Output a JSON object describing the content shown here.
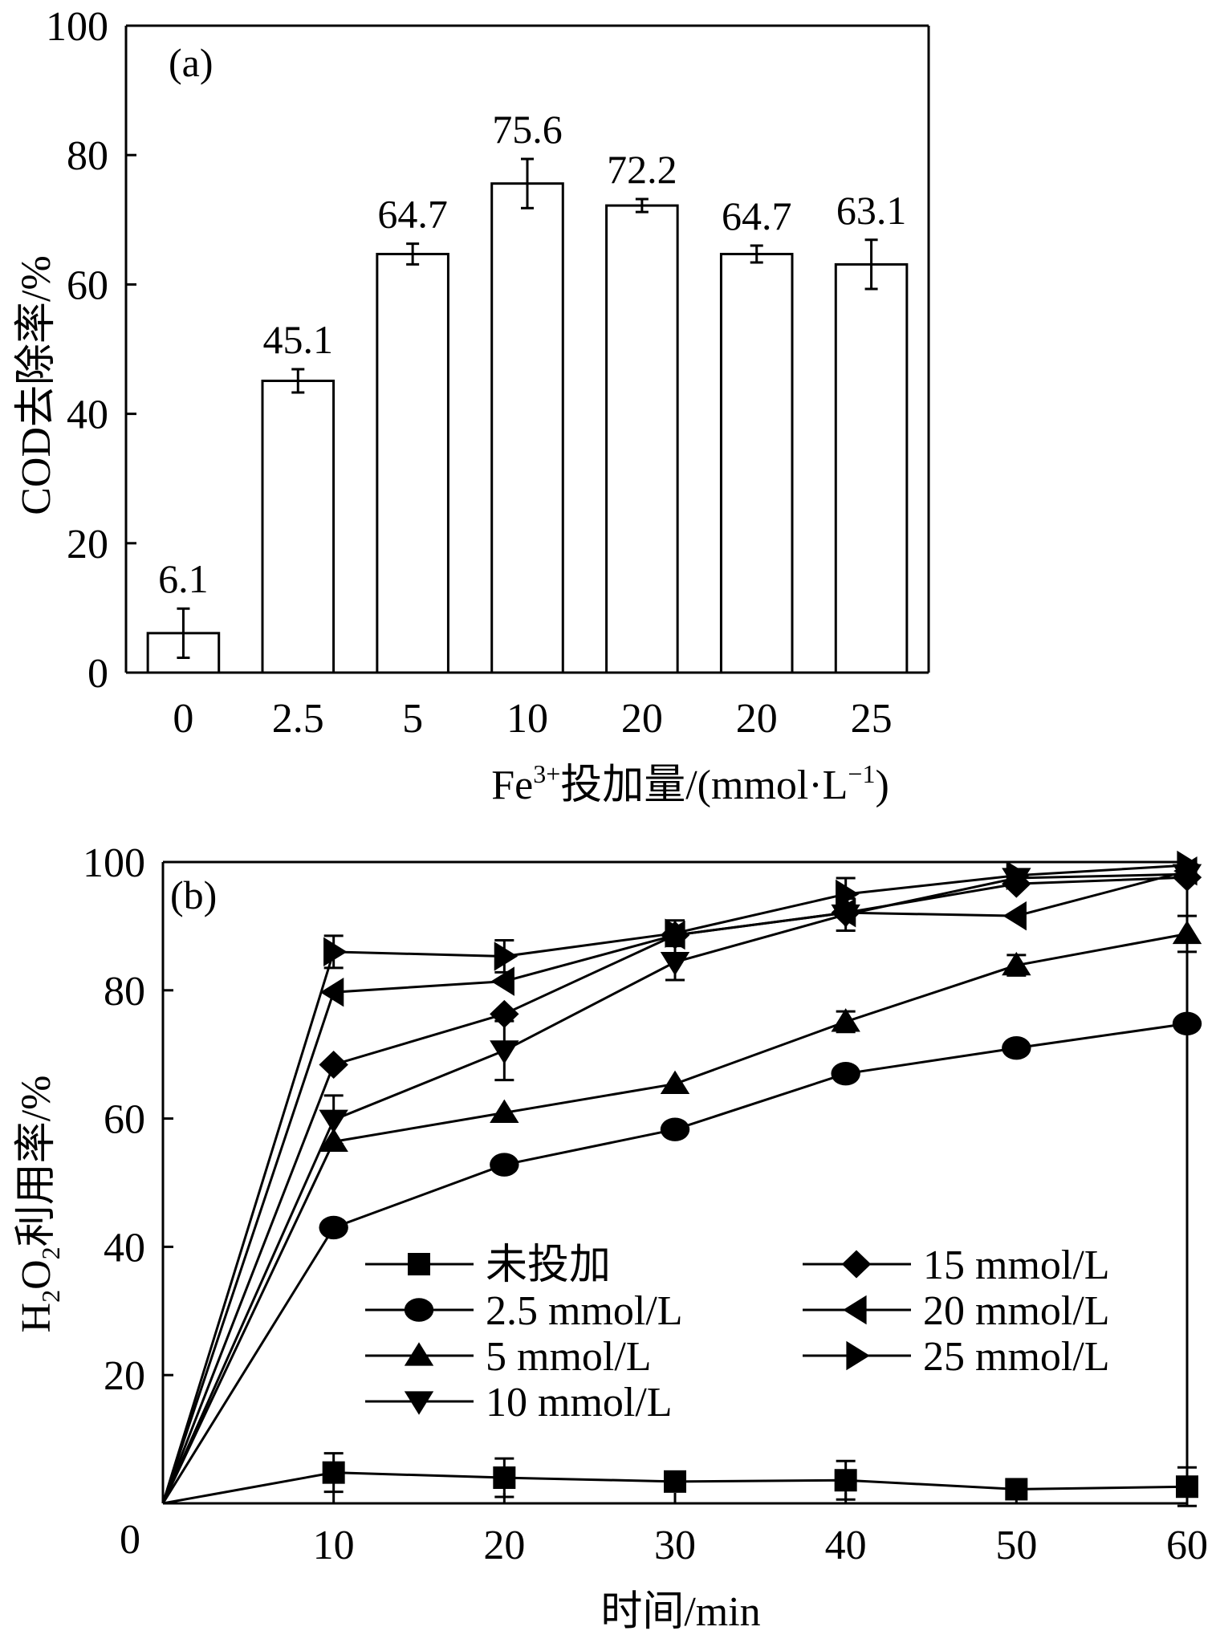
{
  "chart_data": [
    {
      "type": "bar",
      "panel_label": "(a)",
      "categories": [
        "0",
        "2.5",
        "5",
        "10",
        "20",
        "20",
        "25"
      ],
      "values": [
        6.1,
        45.1,
        64.7,
        75.6,
        72.2,
        64.7,
        63.1
      ],
      "value_labels": [
        "6.1",
        "45.1",
        "64.7",
        "75.6",
        "72.2",
        "64.7",
        "63.1"
      ],
      "errors": [
        3.8,
        1.8,
        1.6,
        3.8,
        1.0,
        1.3,
        3.8
      ],
      "xlabel": {
        "prefix": "Fe",
        "sup": "3+",
        "mid": "投加量/(mmol·L",
        "sup2": "−1",
        "suffix": ")"
      },
      "ylabel": "COD去除率/%",
      "ylim": [
        0,
        100
      ],
      "yticks": [
        0,
        20,
        40,
        60,
        80,
        100
      ],
      "ytick_labels": [
        "0",
        "20",
        "40",
        "60",
        "80",
        "100"
      ],
      "grid": false
    },
    {
      "type": "line",
      "panel_label": "(b)",
      "xlabel": "时间/min",
      "ylabel": {
        "part1": "H",
        "sub1": "2",
        "part2": "O",
        "sub2": "2",
        "part3": "利用率/%"
      },
      "xlim": [
        0,
        60
      ],
      "ylim": [
        0,
        100
      ],
      "xticks": [
        10,
        20,
        30,
        40,
        50,
        60
      ],
      "xtick_labels": [
        "10",
        "20",
        "30",
        "40",
        "50",
        "60"
      ],
      "yticks": [
        20,
        40,
        60,
        80,
        100
      ],
      "ytick_labels": [
        "20",
        "40",
        "60",
        "80",
        "100"
      ],
      "origin_label": "0",
      "legend_position": "lower-right",
      "grid": false,
      "x": [
        0,
        10,
        20,
        30,
        40,
        50,
        60
      ],
      "series": [
        {
          "name": "未投加",
          "marker": "square",
          "values": [
            0,
            4.8,
            4,
            3.4,
            3.6,
            2.2,
            2.6
          ],
          "errors": [
            0,
            3,
            3,
            0,
            3,
            0,
            3
          ]
        },
        {
          "name": "2.5 mmol/L",
          "marker": "circle",
          "values": [
            0,
            43,
            52.8,
            58.3,
            67,
            71,
            74.8
          ],
          "errors": [
            0,
            0,
            0,
            0,
            0,
            0,
            0
          ]
        },
        {
          "name": "5 mmol/L",
          "marker": "triangle-up",
          "values": [
            0,
            56.4,
            60.9,
            65.4,
            75.1,
            83.9,
            88.8
          ],
          "errors": [
            0,
            0,
            0,
            0,
            1.6,
            1.6,
            2.8
          ]
        },
        {
          "name": "10 mmol/L",
          "marker": "triangle-down",
          "values": [
            0,
            59.8,
            70.6,
            84.4,
            91.8,
            97.5,
            98.1
          ],
          "errors": [
            0,
            3.8,
            4.6,
            2.8,
            2.5,
            0,
            0
          ]
        },
        {
          "name": "15 mmol/L",
          "marker": "diamond",
          "values": [
            0,
            68.4,
            76.3,
            88.6,
            92.1,
            96.6,
            97.6
          ],
          "errors": [
            0,
            0,
            0,
            0,
            0,
            0,
            0
          ]
        },
        {
          "name": "20 mmol/L",
          "marker": "triangle-left",
          "values": [
            0,
            79.7,
            81.4,
            88.6,
            92.1,
            91.6,
            98.6
          ],
          "errors": [
            0,
            0,
            0,
            0,
            0,
            0,
            0
          ]
        },
        {
          "name": "25 mmol/L",
          "marker": "triangle-right",
          "values": [
            0,
            86,
            85.3,
            88.9,
            95,
            97.9,
            99.5
          ],
          "errors": [
            0,
            2.5,
            2.5,
            2.0,
            2.5,
            0,
            0
          ]
        }
      ]
    }
  ]
}
